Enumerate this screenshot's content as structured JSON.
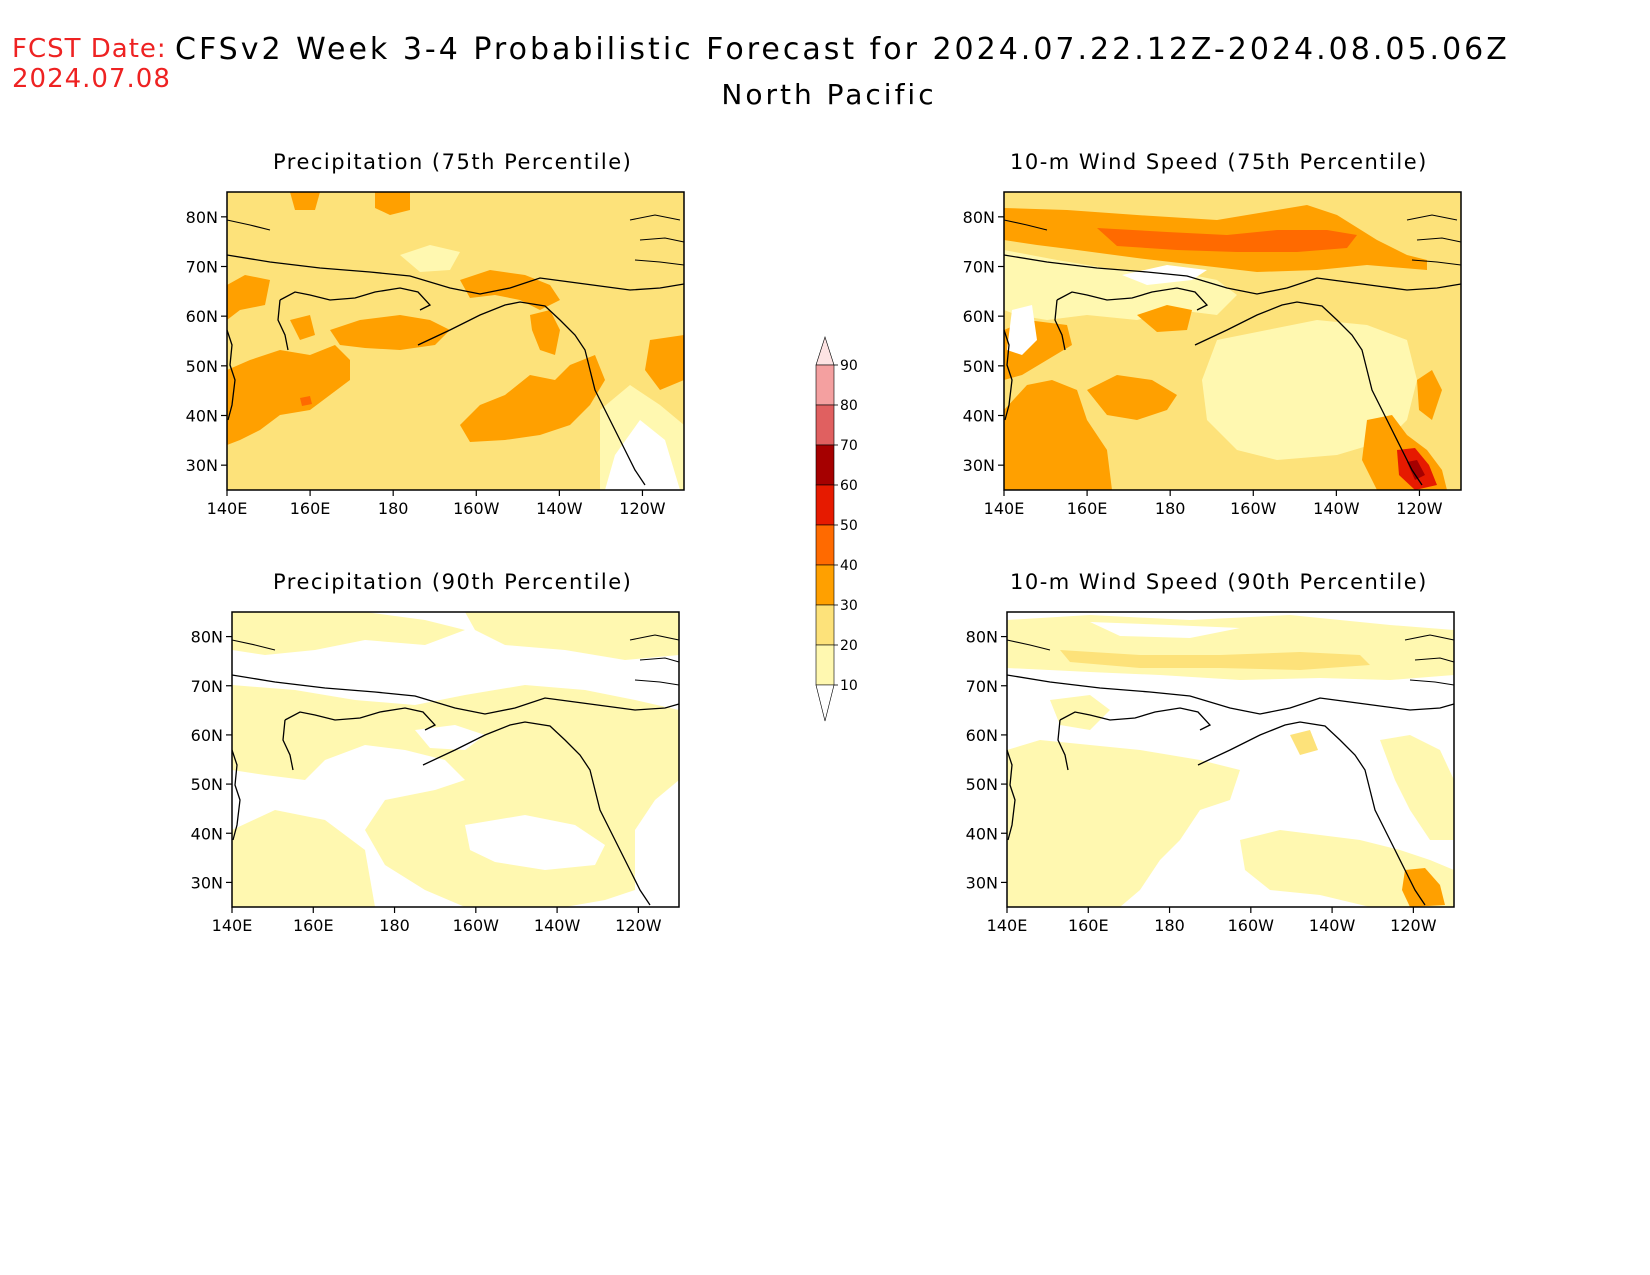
{
  "header": {
    "fcst_label": "FCST Date:",
    "fcst_date": "2024.07.08",
    "title": "CFSv2 Week 3-4 Probabilistic Forecast for 2024.07.22.12Z-2024.08.05.06Z",
    "region": "North Pacific"
  },
  "map_axes": {
    "lon_ticks": [
      "140E",
      "160E",
      "180",
      "160W",
      "140W",
      "120W"
    ],
    "lat_ticks": [
      "80N",
      "70N",
      "60N",
      "50N",
      "40N",
      "30N"
    ]
  },
  "panels": [
    {
      "id": "precip-75",
      "title": "Precipitation (75th Percentile)",
      "variable": "Precipitation",
      "percentile": 75
    },
    {
      "id": "wind-75",
      "title": "10-m Wind Speed (75th Percentile)",
      "variable": "10-m Wind Speed",
      "percentile": 75
    },
    {
      "id": "precip-90",
      "title": "Precipitation (90th Percentile)",
      "variable": "Precipitation",
      "percentile": 90
    },
    {
      "id": "wind-90",
      "title": "10-m Wind Speed (90th Percentile)",
      "variable": "10-m Wind Speed",
      "percentile": 90
    }
  ],
  "colorbar": {
    "labels": [
      "90",
      "80",
      "70",
      "60",
      "50",
      "40",
      "30",
      "20",
      "10"
    ],
    "colors": [
      "#fde3e3",
      "#f4a0a0",
      "#e06060",
      "#a50000",
      "#e61a00",
      "#ff6a00",
      "#ffa000",
      "#fde27a",
      "#fff8b0"
    ]
  }
}
